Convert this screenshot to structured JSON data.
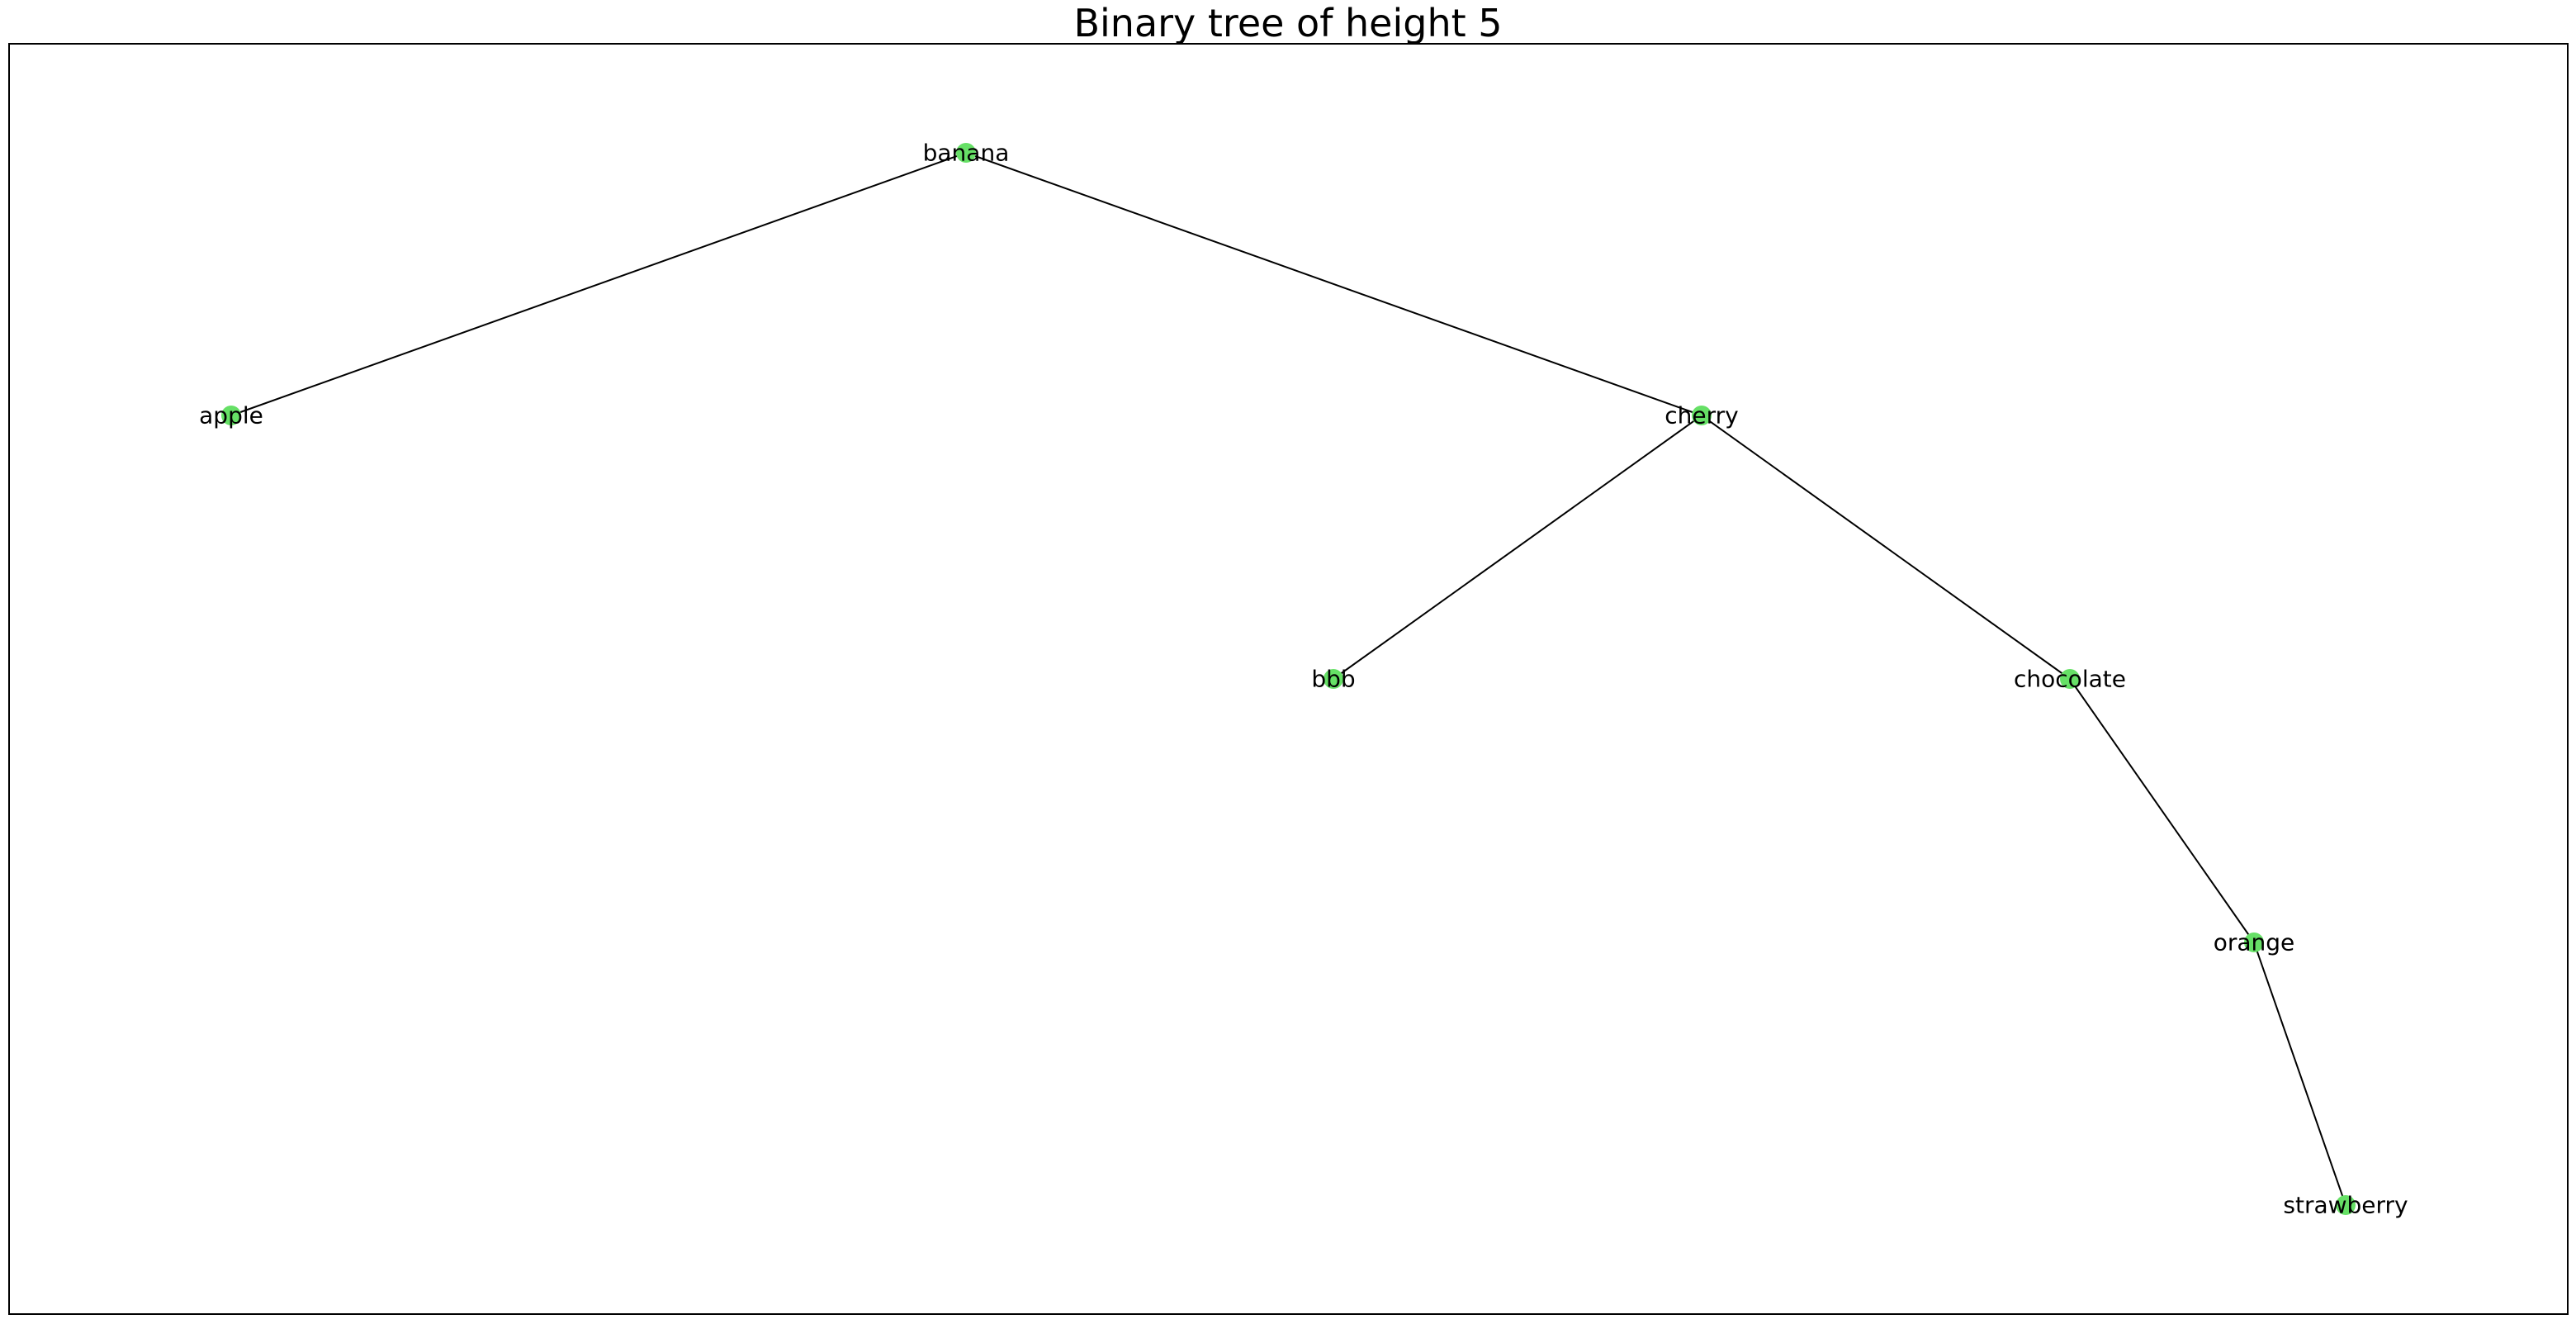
{
  "title": "Binary tree of height 5",
  "colors": {
    "node": "#66e066",
    "edge": "#000000",
    "text": "#000000"
  },
  "tree": {
    "root": "banana",
    "nodes": [
      "banana",
      "apple",
      "cherry",
      "bbb",
      "chocolate",
      "orange",
      "strawberry"
    ],
    "edges": [
      [
        "banana",
        "apple"
      ],
      [
        "banana",
        "cherry"
      ],
      [
        "cherry",
        "bbb"
      ],
      [
        "cherry",
        "chocolate"
      ],
      [
        "chocolate",
        "orange"
      ],
      [
        "orange",
        "strawberry"
      ]
    ]
  }
}
